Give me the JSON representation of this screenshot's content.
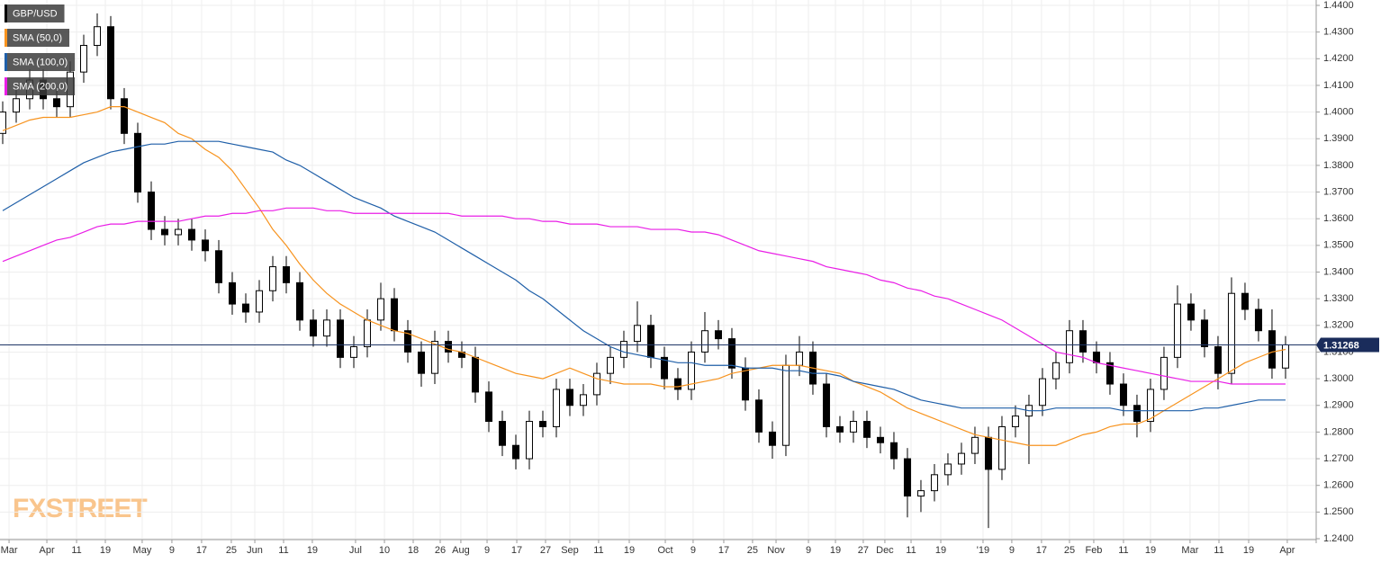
{
  "chart_data": {
    "type": "candlestick",
    "symbol": "GBP/USD",
    "watermark": "FXSTREET",
    "last_price": 1.31268,
    "ylim": [
      1.23966,
      1.44202
    ],
    "yticks": [
      {
        "value": 1.24,
        "label": "1.2400"
      },
      {
        "value": 1.25,
        "label": "1.2500"
      },
      {
        "value": 1.26,
        "label": "1.2600"
      },
      {
        "value": 1.27,
        "label": "1.2700"
      },
      {
        "value": 1.28,
        "label": "1.2800"
      },
      {
        "value": 1.29,
        "label": "1.2900"
      },
      {
        "value": 1.3,
        "label": "1.3000"
      },
      {
        "value": 1.31,
        "label": "1.3100"
      },
      {
        "value": 1.32,
        "label": "1.3200"
      },
      {
        "value": 1.33,
        "label": "1.3300"
      },
      {
        "value": 1.34,
        "label": "1.3400"
      },
      {
        "value": 1.35,
        "label": "1.3500"
      },
      {
        "value": 1.36,
        "label": "1.3600"
      },
      {
        "value": 1.37,
        "label": "1.3700"
      },
      {
        "value": 1.38,
        "label": "1.3800"
      },
      {
        "value": 1.39,
        "label": "1.3900"
      },
      {
        "value": 1.4,
        "label": "1.4000"
      },
      {
        "value": 1.41,
        "label": "1.4100"
      },
      {
        "value": 1.42,
        "label": "1.4200"
      },
      {
        "value": 1.43,
        "label": "1.4300"
      },
      {
        "value": 1.44,
        "label": "1.4400"
      }
    ],
    "xlim": [
      -0.2,
      97.27
    ],
    "xticks": [
      {
        "value": 0.47,
        "label": "Mar"
      },
      {
        "value": 3.27,
        "label": "Apr"
      },
      {
        "value": 5.47,
        "label": "11"
      },
      {
        "value": 7.6,
        "label": "19"
      },
      {
        "value": 10.33,
        "label": "May"
      },
      {
        "value": 12.53,
        "label": "9"
      },
      {
        "value": 14.73,
        "label": "17"
      },
      {
        "value": 16.93,
        "label": "25"
      },
      {
        "value": 18.67,
        "label": "Jun"
      },
      {
        "value": 20.8,
        "label": "11"
      },
      {
        "value": 22.93,
        "label": "19"
      },
      {
        "value": 26.13,
        "label": "Jul"
      },
      {
        "value": 28.27,
        "label": "10"
      },
      {
        "value": 30.4,
        "label": "18"
      },
      {
        "value": 32.4,
        "label": "26"
      },
      {
        "value": 33.93,
        "label": "Aug"
      },
      {
        "value": 35.87,
        "label": "9"
      },
      {
        "value": 38.07,
        "label": "17"
      },
      {
        "value": 40.2,
        "label": "27"
      },
      {
        "value": 42,
        "label": "Sep"
      },
      {
        "value": 44.13,
        "label": "11"
      },
      {
        "value": 46.4,
        "label": "19"
      },
      {
        "value": 49.07,
        "label": "Oct"
      },
      {
        "value": 51.13,
        "label": "9"
      },
      {
        "value": 53.4,
        "label": "17"
      },
      {
        "value": 55.53,
        "label": "25"
      },
      {
        "value": 57.27,
        "label": "Nov"
      },
      {
        "value": 59.67,
        "label": "9"
      },
      {
        "value": 61.67,
        "label": "19"
      },
      {
        "value": 63.73,
        "label": "27"
      },
      {
        "value": 65.33,
        "label": "Dec"
      },
      {
        "value": 67.27,
        "label": "11"
      },
      {
        "value": 69.47,
        "label": "19"
      },
      {
        "value": 72.6,
        "label": "'19"
      },
      {
        "value": 74.73,
        "label": "9"
      },
      {
        "value": 76.93,
        "label": "17"
      },
      {
        "value": 79,
        "label": "25"
      },
      {
        "value": 80.8,
        "label": "Feb"
      },
      {
        "value": 83,
        "label": "11"
      },
      {
        "value": 85,
        "label": "19"
      },
      {
        "value": 87.93,
        "label": "Mar"
      },
      {
        "value": 90.07,
        "label": "11"
      },
      {
        "value": 92.27,
        "label": "19"
      },
      {
        "value": 95.13,
        "label": "Apr"
      }
    ],
    "grid": true,
    "up_color": "#ffffff",
    "down_color": "#000000",
    "open": [
      1.392,
      1.4,
      1.405,
      1.412,
      1.405,
      1.402,
      1.415,
      1.425,
      1.432,
      1.405,
      1.392,
      1.37,
      1.356,
      1.354,
      1.356,
      1.352,
      1.348,
      1.336,
      1.328,
      1.325,
      1.333,
      1.342,
      1.336,
      1.322,
      1.316,
      1.322,
      1.308,
      1.312,
      1.322,
      1.33,
      1.318,
      1.31,
      1.302,
      1.314,
      1.31,
      1.308,
      1.295,
      1.284,
      1.275,
      1.27,
      1.284,
      1.282,
      1.296,
      1.29,
      1.294,
      1.302,
      1.308,
      1.314,
      1.32,
      1.308,
      1.3,
      1.296,
      1.31,
      1.318,
      1.315,
      1.304,
      1.292,
      1.28,
      1.275,
      1.305,
      1.31,
      1.298,
      1.282,
      1.28,
      1.284,
      1.278,
      1.276,
      1.27,
      1.256,
      1.258,
      1.264,
      1.268,
      1.272,
      1.278,
      1.266,
      1.282,
      1.286,
      1.29,
      1.3,
      1.306,
      1.318,
      1.31,
      1.306,
      1.298,
      1.29,
      1.284,
      1.296,
      1.308,
      1.328,
      1.322,
      1.312,
      1.302,
      1.332,
      1.326,
      1.318,
      1.304
    ],
    "high": [
      1.404,
      1.409,
      1.416,
      1.416,
      1.409,
      1.419,
      1.429,
      1.437,
      1.436,
      1.409,
      1.396,
      1.374,
      1.361,
      1.36,
      1.36,
      1.356,
      1.352,
      1.34,
      1.332,
      1.337,
      1.346,
      1.346,
      1.34,
      1.326,
      1.326,
      1.326,
      1.316,
      1.326,
      1.336,
      1.334,
      1.322,
      1.314,
      1.318,
      1.318,
      1.314,
      1.312,
      1.299,
      1.288,
      1.279,
      1.288,
      1.288,
      1.3,
      1.3,
      1.298,
      1.306,
      1.312,
      1.318,
      1.329,
      1.324,
      1.312,
      1.304,
      1.314,
      1.325,
      1.322,
      1.319,
      1.308,
      1.296,
      1.284,
      1.309,
      1.316,
      1.314,
      1.302,
      1.286,
      1.288,
      1.288,
      1.282,
      1.28,
      1.274,
      1.262,
      1.268,
      1.272,
      1.276,
      1.282,
      1.282,
      1.286,
      1.29,
      1.294,
      1.304,
      1.31,
      1.322,
      1.322,
      1.314,
      1.31,
      1.302,
      1.294,
      1.3,
      1.312,
      1.335,
      1.332,
      1.326,
      1.316,
      1.338,
      1.336,
      1.33,
      1.326,
      1.316
    ],
    "low": [
      1.388,
      1.396,
      1.401,
      1.401,
      1.398,
      1.398,
      1.411,
      1.421,
      1.401,
      1.388,
      1.366,
      1.352,
      1.35,
      1.35,
      1.348,
      1.344,
      1.332,
      1.324,
      1.321,
      1.321,
      1.329,
      1.332,
      1.318,
      1.312,
      1.312,
      1.304,
      1.304,
      1.308,
      1.318,
      1.314,
      1.306,
      1.297,
      1.298,
      1.306,
      1.304,
      1.291,
      1.28,
      1.271,
      1.266,
      1.266,
      1.278,
      1.278,
      1.286,
      1.286,
      1.29,
      1.298,
      1.304,
      1.31,
      1.304,
      1.296,
      1.292,
      1.292,
      1.306,
      1.311,
      1.3,
      1.288,
      1.276,
      1.27,
      1.271,
      1.301,
      1.294,
      1.278,
      1.276,
      1.276,
      1.274,
      1.272,
      1.266,
      1.248,
      1.25,
      1.254,
      1.26,
      1.264,
      1.268,
      1.244,
      1.262,
      1.278,
      1.268,
      1.286,
      1.296,
      1.302,
      1.306,
      1.302,
      1.294,
      1.286,
      1.278,
      1.28,
      1.292,
      1.304,
      1.318,
      1.308,
      1.296,
      1.298,
      1.322,
      1.314,
      1.3,
      1.3
    ],
    "close": [
      1.4,
      1.405,
      1.412,
      1.405,
      1.402,
      1.415,
      1.425,
      1.432,
      1.405,
      1.392,
      1.37,
      1.356,
      1.354,
      1.356,
      1.352,
      1.348,
      1.336,
      1.328,
      1.325,
      1.333,
      1.342,
      1.336,
      1.322,
      1.316,
      1.322,
      1.308,
      1.312,
      1.322,
      1.33,
      1.318,
      1.31,
      1.302,
      1.314,
      1.31,
      1.308,
      1.295,
      1.284,
      1.275,
      1.27,
      1.284,
      1.282,
      1.296,
      1.29,
      1.294,
      1.302,
      1.308,
      1.314,
      1.32,
      1.308,
      1.3,
      1.296,
      1.31,
      1.318,
      1.315,
      1.304,
      1.292,
      1.28,
      1.275,
      1.305,
      1.31,
      1.298,
      1.282,
      1.28,
      1.284,
      1.278,
      1.276,
      1.27,
      1.256,
      1.258,
      1.264,
      1.268,
      1.272,
      1.278,
      1.266,
      1.282,
      1.286,
      1.29,
      1.3,
      1.306,
      1.318,
      1.31,
      1.306,
      1.298,
      1.29,
      1.284,
      1.296,
      1.308,
      1.328,
      1.322,
      1.312,
      1.302,
      1.332,
      1.326,
      1.318,
      1.304,
      1.3127
    ],
    "series": [
      {
        "name": "SMA (50,0)",
        "color": "#f7931e",
        "values": [
          1.393,
          1.395,
          1.397,
          1.398,
          1.398,
          1.398,
          1.399,
          1.4,
          1.402,
          1.402,
          1.4,
          1.398,
          1.396,
          1.392,
          1.39,
          1.386,
          1.383,
          1.378,
          1.371,
          1.364,
          1.356,
          1.35,
          1.343,
          1.337,
          1.332,
          1.328,
          1.325,
          1.322,
          1.32,
          1.318,
          1.317,
          1.315,
          1.313,
          1.311,
          1.31,
          1.308,
          1.306,
          1.304,
          1.302,
          1.301,
          1.3,
          1.302,
          1.304,
          1.302,
          1.3,
          1.299,
          1.298,
          1.298,
          1.298,
          1.297,
          1.297,
          1.298,
          1.299,
          1.3,
          1.302,
          1.303,
          1.304,
          1.305,
          1.305,
          1.305,
          1.304,
          1.303,
          1.302,
          1.299,
          1.297,
          1.295,
          1.292,
          1.289,
          1.287,
          1.285,
          1.283,
          1.281,
          1.279,
          1.278,
          1.277,
          1.276,
          1.275,
          1.275,
          1.275,
          1.277,
          1.279,
          1.28,
          1.282,
          1.283,
          1.283,
          1.285,
          1.288,
          1.291,
          1.294,
          1.297,
          1.3,
          1.303,
          1.306,
          1.308,
          1.31,
          1.311
        ]
      },
      {
        "name": "SMA (100,0)",
        "color": "#1f5fa8",
        "values": [
          1.363,
          1.366,
          1.369,
          1.372,
          1.375,
          1.378,
          1.381,
          1.383,
          1.385,
          1.386,
          1.387,
          1.388,
          1.388,
          1.389,
          1.389,
          1.389,
          1.389,
          1.388,
          1.387,
          1.386,
          1.385,
          1.382,
          1.38,
          1.377,
          1.374,
          1.371,
          1.368,
          1.366,
          1.364,
          1.361,
          1.359,
          1.357,
          1.355,
          1.352,
          1.349,
          1.346,
          1.343,
          1.34,
          1.337,
          1.333,
          1.33,
          1.326,
          1.322,
          1.318,
          1.315,
          1.312,
          1.31,
          1.309,
          1.308,
          1.307,
          1.306,
          1.306,
          1.305,
          1.305,
          1.305,
          1.304,
          1.304,
          1.304,
          1.303,
          1.303,
          1.302,
          1.302,
          1.301,
          1.299,
          1.298,
          1.297,
          1.296,
          1.294,
          1.292,
          1.291,
          1.29,
          1.289,
          1.289,
          1.289,
          1.289,
          1.289,
          1.288,
          1.288,
          1.289,
          1.289,
          1.289,
          1.289,
          1.289,
          1.288,
          1.288,
          1.288,
          1.288,
          1.288,
          1.288,
          1.289,
          1.289,
          1.29,
          1.291,
          1.292,
          1.292,
          1.292
        ]
      },
      {
        "name": "SMA (200,0)",
        "color": "#e91ee6",
        "values": [
          1.344,
          1.346,
          1.348,
          1.35,
          1.352,
          1.353,
          1.355,
          1.357,
          1.358,
          1.358,
          1.359,
          1.359,
          1.359,
          1.359,
          1.36,
          1.361,
          1.361,
          1.362,
          1.362,
          1.363,
          1.363,
          1.364,
          1.364,
          1.364,
          1.363,
          1.363,
          1.362,
          1.362,
          1.362,
          1.362,
          1.362,
          1.362,
          1.362,
          1.362,
          1.361,
          1.361,
          1.361,
          1.361,
          1.36,
          1.36,
          1.359,
          1.359,
          1.358,
          1.358,
          1.358,
          1.357,
          1.357,
          1.357,
          1.356,
          1.356,
          1.356,
          1.355,
          1.355,
          1.354,
          1.352,
          1.35,
          1.348,
          1.347,
          1.346,
          1.345,
          1.344,
          1.342,
          1.341,
          1.34,
          1.339,
          1.337,
          1.336,
          1.334,
          1.333,
          1.331,
          1.33,
          1.328,
          1.326,
          1.324,
          1.322,
          1.319,
          1.316,
          1.313,
          1.31,
          1.309,
          1.308,
          1.306,
          1.305,
          1.304,
          1.303,
          1.302,
          1.301,
          1.3,
          1.299,
          1.299,
          1.299,
          1.298,
          1.298,
          1.298,
          1.298,
          1.298
        ]
      }
    ]
  }
}
